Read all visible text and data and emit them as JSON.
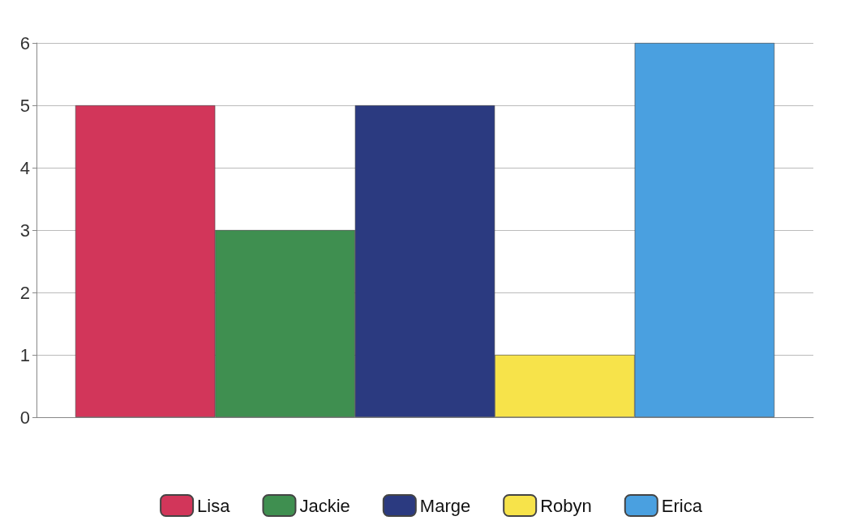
{
  "chart_data": {
    "type": "bar",
    "categories": [
      null
    ],
    "series": [
      {
        "name": "Lisa",
        "color": "#d2365a",
        "values": [
          5
        ]
      },
      {
        "name": "Jackie",
        "color": "#3f8f50",
        "values": [
          3
        ]
      },
      {
        "name": "Marge",
        "color": "#2b3a80",
        "values": [
          5
        ]
      },
      {
        "name": "Robyn",
        "color": "#f7e34a",
        "values": [
          1
        ]
      },
      {
        "name": "Erica",
        "color": "#4aa0e0",
        "values": [
          6
        ]
      }
    ],
    "ylim": [
      0,
      6
    ],
    "yticks": [
      0,
      1,
      2,
      3,
      4,
      5,
      6
    ],
    "grid": "y",
    "legend": "bottom"
  }
}
